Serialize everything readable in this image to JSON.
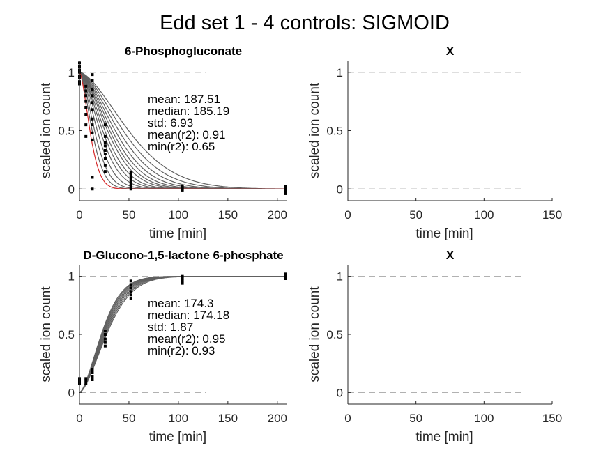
{
  "figure": {
    "title": "Edd set 1 - 4 controls: SIGMOID"
  },
  "chart_data": [
    {
      "type": "line",
      "title": "6-Phosphogluconate",
      "xlabel": "time [min]",
      "ylabel": "scaled ion count",
      "xlim": [
        0,
        210
      ],
      "ylim": [
        -0.1,
        1.1
      ],
      "xticks": [
        0,
        50,
        100,
        150,
        200
      ],
      "yticks": [
        0,
        0.5,
        1
      ],
      "ref_lines": [
        0,
        1
      ],
      "ref_xrange": [
        0,
        128
      ],
      "grid": false,
      "direction": "decay",
      "stats": [
        "mean: 187.51",
        "median: 185.19",
        "std: 6.93",
        "mean(r2): 0.91",
        "min(r2): 0.65"
      ],
      "fit_curves": [
        {
          "k": 0.016,
          "color": "#606060"
        },
        {
          "k": 0.018,
          "color": "#606060"
        },
        {
          "k": 0.02,
          "color": "#606060"
        },
        {
          "k": 0.022,
          "color": "#606060"
        },
        {
          "k": 0.024,
          "color": "#606060"
        },
        {
          "k": 0.026,
          "color": "#606060"
        },
        {
          "k": 0.028,
          "color": "#606060"
        },
        {
          "k": 0.031,
          "color": "#606060"
        },
        {
          "k": 0.034,
          "color": "#606060"
        },
        {
          "k": 0.038,
          "color": "#606060"
        },
        {
          "k": 0.044,
          "color": "#606060"
        },
        {
          "k": 0.052,
          "color": "#606060"
        },
        {
          "k": 0.062,
          "color": "#606060"
        },
        {
          "k": 0.075,
          "color": "#d62728"
        }
      ],
      "points": [
        {
          "x": 0,
          "y": [
            1.08,
            1.05,
            1.02,
            1.0,
            0.97,
            0.95,
            0.92,
            0.9
          ]
        },
        {
          "x": 6.5,
          "y": [
            0.88,
            0.84,
            0.8,
            0.75,
            0.7,
            0.64,
            0.55,
            0.45
          ]
        },
        {
          "x": 13,
          "y": [
            0.98,
            0.93,
            0.85,
            0.8,
            0.74,
            0.68,
            0.6,
            0.55,
            0.48,
            0.42,
            0.1,
            0.0
          ]
        },
        {
          "x": 26,
          "y": [
            0.55,
            0.45,
            0.4,
            0.37,
            0.33,
            0.3,
            0.26,
            0.2,
            0.15
          ]
        },
        {
          "x": 52,
          "y": [
            0.14,
            0.12,
            0.1,
            0.08,
            0.06,
            0.04,
            0.02,
            0.0
          ]
        },
        {
          "x": 104,
          "y": [
            0.02,
            0.01,
            0.0,
            -0.01
          ]
        },
        {
          "x": 208,
          "y": [
            0.02,
            0.0,
            -0.02,
            -0.04
          ]
        }
      ]
    },
    {
      "type": "line",
      "title": "X",
      "xlabel": "time [min]",
      "ylabel": "scaled ion count",
      "xlim": [
        0,
        150
      ],
      "ylim": [
        -0.1,
        1.1
      ],
      "xticks": [
        0,
        50,
        100,
        150
      ],
      "yticks": [
        0,
        0.5,
        1
      ],
      "ref_lines": [
        0,
        1
      ],
      "ref_xrange": [
        0,
        128
      ],
      "grid": false,
      "stats": [],
      "fit_curves": [],
      "points": []
    },
    {
      "type": "line",
      "title": "D-Glucono-1,5-lactone 6-phosphate",
      "xlabel": "time [min]",
      "ylabel": "scaled ion count",
      "xlim": [
        0,
        210
      ],
      "ylim": [
        -0.1,
        1.1
      ],
      "xticks": [
        0,
        50,
        100,
        150,
        200
      ],
      "yticks": [
        0,
        0.5,
        1
      ],
      "ref_lines": [
        0,
        1
      ],
      "ref_xrange": [
        0,
        128
      ],
      "grid": false,
      "direction": "rise",
      "stats": [
        "mean: 174.3",
        "median: 174.18",
        "std: 1.87",
        "mean(r2): 0.95",
        "min(r2): 0.93"
      ],
      "fit_curves": [
        {
          "k": 0.029,
          "color": "#606060"
        },
        {
          "k": 0.03,
          "color": "#606060"
        },
        {
          "k": 0.031,
          "color": "#606060"
        },
        {
          "k": 0.032,
          "color": "#606060"
        },
        {
          "k": 0.033,
          "color": "#606060"
        },
        {
          "k": 0.034,
          "color": "#606060"
        },
        {
          "k": 0.035,
          "color": "#606060"
        },
        {
          "k": 0.036,
          "color": "#606060"
        }
      ],
      "points": [
        {
          "x": 0,
          "y": [
            0.12,
            0.1,
            0.08
          ]
        },
        {
          "x": 6.5,
          "y": [
            0.12,
            0.1,
            0.08
          ]
        },
        {
          "x": 13,
          "y": [
            0.2,
            0.17,
            0.14,
            0.11
          ]
        },
        {
          "x": 26,
          "y": [
            0.53,
            0.5,
            0.46,
            0.43,
            0.4
          ]
        },
        {
          "x": 52,
          "y": [
            0.96,
            0.93,
            0.9,
            0.87,
            0.84,
            0.81
          ]
        },
        {
          "x": 104,
          "y": [
            1.0,
            0.98,
            0.96,
            0.94
          ]
        },
        {
          "x": 208,
          "y": [
            1.02,
            1.0,
            0.98
          ]
        }
      ]
    },
    {
      "type": "line",
      "title": "X",
      "xlabel": "time [min]",
      "ylabel": "scaled ion count",
      "xlim": [
        0,
        150
      ],
      "ylim": [
        -0.1,
        1.1
      ],
      "xticks": [
        0,
        50,
        100,
        150
      ],
      "yticks": [
        0,
        0.5,
        1
      ],
      "ref_lines": [
        0,
        1
      ],
      "ref_xrange": [
        0,
        128
      ],
      "grid": false,
      "stats": [],
      "fit_curves": [],
      "points": []
    }
  ]
}
